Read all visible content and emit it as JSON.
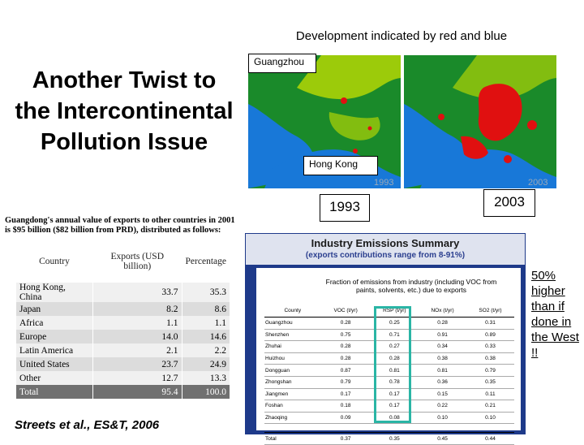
{
  "slide": {
    "caption": "Development indicated by red and blue",
    "title": "Another Twist to the Intercontinental Pollution Issue",
    "citation": "Streets et al., ES&T, 2006",
    "note": "50% higher than if done in the West !!"
  },
  "maps": {
    "label_guangzhou": "Guangzhou",
    "label_hongkong": "Hong Kong",
    "map1_year": "1993",
    "map2_year": "2003",
    "caption_1993": "1993",
    "caption_2003": "2003",
    "colors": {
      "water": "#1878d8",
      "land": "#1a8a2a",
      "bright_land": "#c8e000",
      "urban": "#e01010"
    }
  },
  "exports": {
    "title": "Guangdong's annual value of exports to other countries in 2001 is $95 billion ($82 billion from PRD), distributed as follows:",
    "headers": [
      "Country",
      "Exports (USD billion)",
      "Percentage"
    ],
    "rows": [
      [
        "Hong Kong, China",
        "33.7",
        "35.3"
      ],
      [
        "Japan",
        "8.2",
        "8.6"
      ],
      [
        "Africa",
        "1.1",
        "1.1"
      ],
      [
        "Europe",
        "14.0",
        "14.6"
      ],
      [
        "Latin America",
        "2.1",
        "2.2"
      ],
      [
        "United States",
        "23.7",
        "24.9"
      ],
      [
        "Other",
        "12.7",
        "13.3"
      ]
    ],
    "total": [
      "Total",
      "95.4",
      "100.0"
    ]
  },
  "emissions": {
    "title": "Industry Emissions Summary",
    "subtitle": "(exports contributions range from 8-91%)",
    "fraction_title": "Fraction of emissions from industry (including VOC from paints, solvents, etc.) due to exports",
    "headers": [
      "County",
      "VOC (t/yr)",
      "RSP (t/yr)",
      "NOx (t/yr)",
      "SO2 (t/yr)"
    ],
    "rows": [
      [
        "Guangzhou",
        "0.28",
        "0.25",
        "0.28",
        "0.31"
      ],
      [
        "Shenzhen",
        "0.75",
        "0.71",
        "0.91",
        "0.89"
      ],
      [
        "Zhuhai",
        "0.28",
        "0.27",
        "0.34",
        "0.33"
      ],
      [
        "Huizhou",
        "0.28",
        "0.28",
        "0.38",
        "0.38"
      ],
      [
        "Dongguan",
        "0.87",
        "0.81",
        "0.81",
        "0.79"
      ],
      [
        "Zhongshan",
        "0.79",
        "0.78",
        "0.36",
        "0.35"
      ],
      [
        "Jiangmen",
        "0.17",
        "0.17",
        "0.15",
        "0.11"
      ],
      [
        "Foshan",
        "0.18",
        "0.17",
        "0.22",
        "0.21"
      ],
      [
        "Zhaoqing",
        "0.09",
        "0.08",
        "0.10",
        "0.10"
      ]
    ],
    "total": [
      "Total",
      "0.37",
      "0.35",
      "0.45",
      "0.44"
    ]
  }
}
